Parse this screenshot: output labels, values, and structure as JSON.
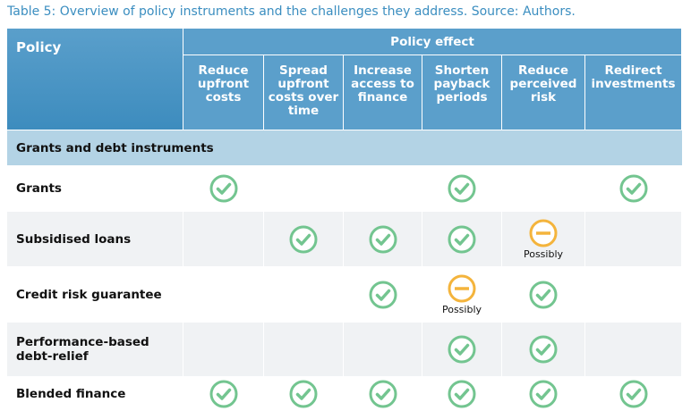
{
  "caption": "Table 5: Overview of policy instruments and the challenges they address. Source: Authors.",
  "table": {
    "policy_header": "Policy",
    "effect_header": "Policy effect",
    "columns": [
      "Reduce upfront costs",
      "Spread upfront costs over time",
      "Increase access to finance",
      "Shorten payback periods",
      "Reduce perceived risk",
      "Redirect investments"
    ],
    "section": "Grants and debt instruments",
    "rows": [
      {
        "label": "Grants",
        "cells": [
          true,
          null,
          null,
          true,
          null,
          true
        ]
      },
      {
        "label": "Subsidised loans",
        "cells": [
          null,
          true,
          true,
          true,
          "Possibly",
          null
        ]
      },
      {
        "label": "Credit risk guarantee",
        "cells": [
          null,
          null,
          true,
          "Possibly",
          true,
          null
        ]
      },
      {
        "label": "Performance-based debt-relief",
        "cells": [
          null,
          null,
          null,
          true,
          true,
          null
        ]
      },
      {
        "label": "Blended finance",
        "cells": [
          true,
          true,
          true,
          true,
          true,
          true
        ]
      }
    ]
  }
}
